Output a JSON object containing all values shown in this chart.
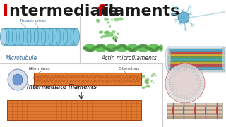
{
  "bg_color": "#ffffff",
  "title_I_color": "#cc0000",
  "title_f_color": "#cc0000",
  "title_main_color": "#1a1a1a",
  "title_fontsize": 16,
  "panel_div_color": "#cccccc",
  "microtubule_color": "#7ec8e3",
  "microtubule_edge": "#4a9ab8",
  "microtubule_label": "Microtubule",
  "tubulin_label": "Tubulin dimer",
  "actin_color": "#6abf5e",
  "actin_dark": "#3a8a2e",
  "actin_label": "Actin microfilaments",
  "if_orange": "#e07a30",
  "if_dark": "#a04010",
  "if_label": "Intermediate filaments",
  "neuron_color": "#5bacd0",
  "neuron_dendrite": "#7fc4de",
  "axon_color": "#aaaaaa",
  "cyl_outer": "#d0e8f0",
  "cyl_blue": "#4a9ab8",
  "cyl_red": "#d04040",
  "cyl_yellow": "#e0c030",
  "cyl_green": "#60a050",
  "cyl_teal": "#40b0b0",
  "cell_bg": "#f8f8f8",
  "cell_ring_colors": [
    "#dddddd",
    "#ffbbbb",
    "#ff8888",
    "#bbddff",
    "#6699cc"
  ],
  "cell_ring_radii": [
    28,
    22,
    16,
    10,
    6
  ],
  "sarcomere_light": "#ddccbb",
  "sarcomere_dark": "#aa8866",
  "sarcomere_line": "#4477bb",
  "sarcomere_vline": "#cc3333",
  "nucleus_outer": "#c8ddf0",
  "nucleus_inner": "#5588cc",
  "protein_green": "#60b040"
}
